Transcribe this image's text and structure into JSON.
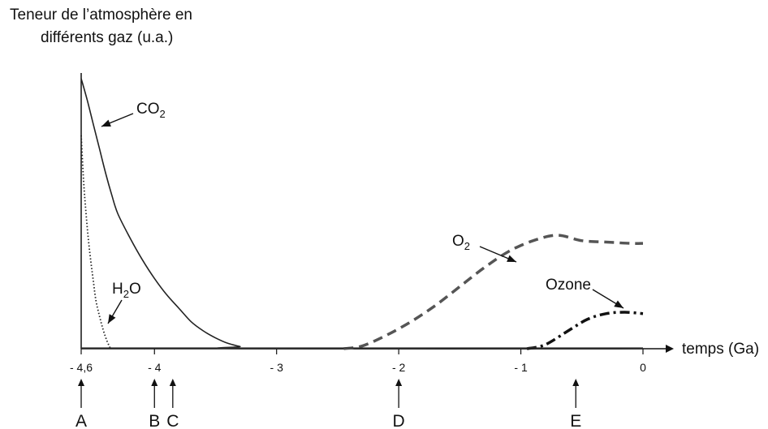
{
  "chart_data": {
    "type": "line",
    "ylabel_lines": [
      "Teneur de l’atmosphère en",
      "différents gaz (u.a.)"
    ],
    "xlabel": "temps (Ga)",
    "xlim": [
      -4.6,
      0
    ],
    "ylim": [
      0,
      1
    ],
    "xticks": [
      {
        "value": -4.6,
        "label": "- 4,6"
      },
      {
        "value": -4.0,
        "label": "- 4"
      },
      {
        "value": -3.0,
        "label": "- 3"
      },
      {
        "value": -2.0,
        "label": "- 2"
      },
      {
        "value": -1.0,
        "label": "- 1"
      },
      {
        "value": 0.0,
        "label": "0"
      }
    ],
    "events": [
      {
        "label": "A",
        "x": -4.6
      },
      {
        "label": "B",
        "x": -4.0
      },
      {
        "label": "C",
        "x": -3.85
      },
      {
        "label": "D",
        "x": -2.0
      },
      {
        "label": "E",
        "x": -0.55
      }
    ],
    "series": [
      {
        "key": "co2",
        "label_main": "CO",
        "label_sub": "2",
        "style": "solid",
        "x": [
          -4.6,
          -4.55,
          -4.5,
          -4.45,
          -4.4,
          -4.35,
          -4.3,
          -4.2,
          -4.1,
          -4.0,
          -3.9,
          -3.8,
          -3.7,
          -3.6,
          -3.5,
          -3.4,
          -3.3,
          -3.23,
          0
        ],
        "y": [
          1.0,
          0.92,
          0.83,
          0.74,
          0.65,
          0.57,
          0.5,
          0.41,
          0.33,
          0.26,
          0.2,
          0.15,
          0.1,
          0.066,
          0.04,
          0.02,
          0.008,
          0.0,
          0.0
        ]
      },
      {
        "key": "h2o",
        "label_main": "H",
        "label_sub": "2",
        "label_end": "O",
        "style": "dotted",
        "x": [
          -4.6,
          -4.58,
          -4.56,
          -4.54,
          -4.52,
          -4.5,
          -4.48,
          -4.45,
          -4.42,
          -4.39,
          -4.36
        ],
        "y": [
          0.79,
          0.62,
          0.5,
          0.4,
          0.32,
          0.25,
          0.18,
          0.12,
          0.07,
          0.03,
          0.0
        ]
      },
      {
        "key": "o2",
        "label_main": "O",
        "label_sub": "2",
        "style": "dashed",
        "x": [
          -2.45,
          -2.3,
          -2.1,
          -1.9,
          -1.7,
          -1.5,
          -1.3,
          -1.1,
          -0.9,
          -0.7,
          -0.5,
          -0.3,
          -0.1,
          0.0
        ],
        "y": [
          0.0,
          0.01,
          0.05,
          0.1,
          0.16,
          0.23,
          0.3,
          0.36,
          0.4,
          0.42,
          0.4,
          0.395,
          0.39,
          0.39
        ]
      },
      {
        "key": "ozone",
        "label_main": "Ozone",
        "style": "dashdot",
        "x": [
          -0.95,
          -0.8,
          -0.6,
          -0.45,
          -0.3,
          -0.15,
          0.0
        ],
        "y": [
          0.0,
          0.015,
          0.07,
          0.11,
          0.13,
          0.135,
          0.13
        ]
      }
    ],
    "baseline": {
      "x": [
        -4.6,
        0
      ],
      "y": [
        0,
        0
      ]
    }
  }
}
